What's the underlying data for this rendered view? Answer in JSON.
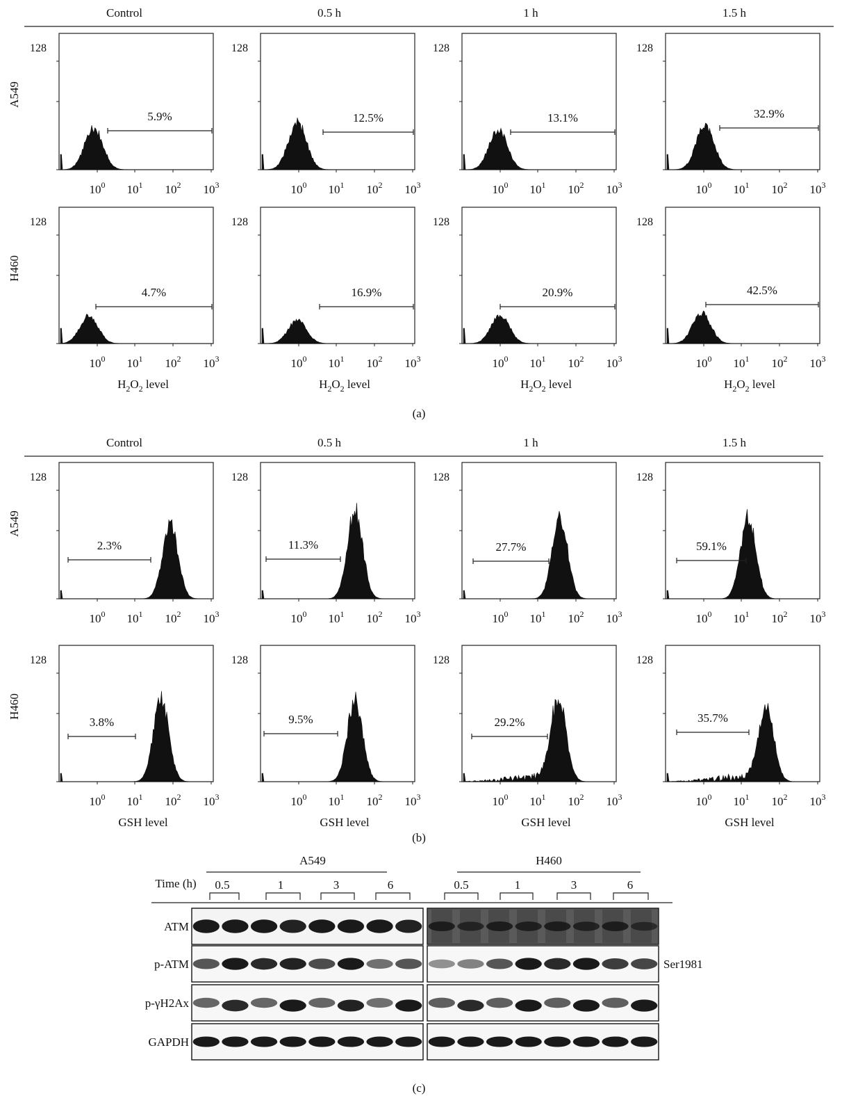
{
  "panel_a": {
    "caption": "(a)",
    "columns": [
      "Control",
      "0.5 h",
      "1 h",
      "1.5 h"
    ],
    "rows": [
      "A549",
      "H460"
    ],
    "x_axis_label": "H2O2 level",
    "y_max_label": "128",
    "x_tick_labels": [
      "10^0",
      "10^1",
      "10^2",
      "10^3"
    ],
    "gate_percentages": [
      [
        "5.9%",
        "12.5%",
        "13.1%",
        "32.9%"
      ],
      [
        "4.7%",
        "16.9%",
        "20.9%",
        "42.5%"
      ]
    ]
  },
  "panel_b": {
    "caption": "(b)",
    "columns": [
      "Control",
      "0.5 h",
      "1 h",
      "1.5 h"
    ],
    "rows": [
      "A549",
      "H460"
    ],
    "x_axis_label": "GSH level",
    "y_max_label": "128",
    "x_tick_labels": [
      "10^0",
      "10^1",
      "10^2",
      "10^3"
    ],
    "gate_percentages": [
      [
        "2.3%",
        "11.3%",
        "27.7%",
        "59.1%"
      ],
      [
        "3.8%",
        "9.5%",
        "29.2%",
        "35.7%"
      ]
    ]
  },
  "panel_c": {
    "caption": "(c)",
    "time_label": "Time (h)",
    "groups": [
      {
        "name": "A549",
        "times": [
          "0.5",
          "1",
          "3",
          "6"
        ]
      },
      {
        "name": "H460",
        "times": [
          "0.5",
          "1",
          "3",
          "6"
        ]
      }
    ],
    "blot_rows": [
      "ATM",
      "p-ATM",
      "p-γH2Ax",
      "GAPDH"
    ],
    "side_label": "Ser1981"
  }
}
